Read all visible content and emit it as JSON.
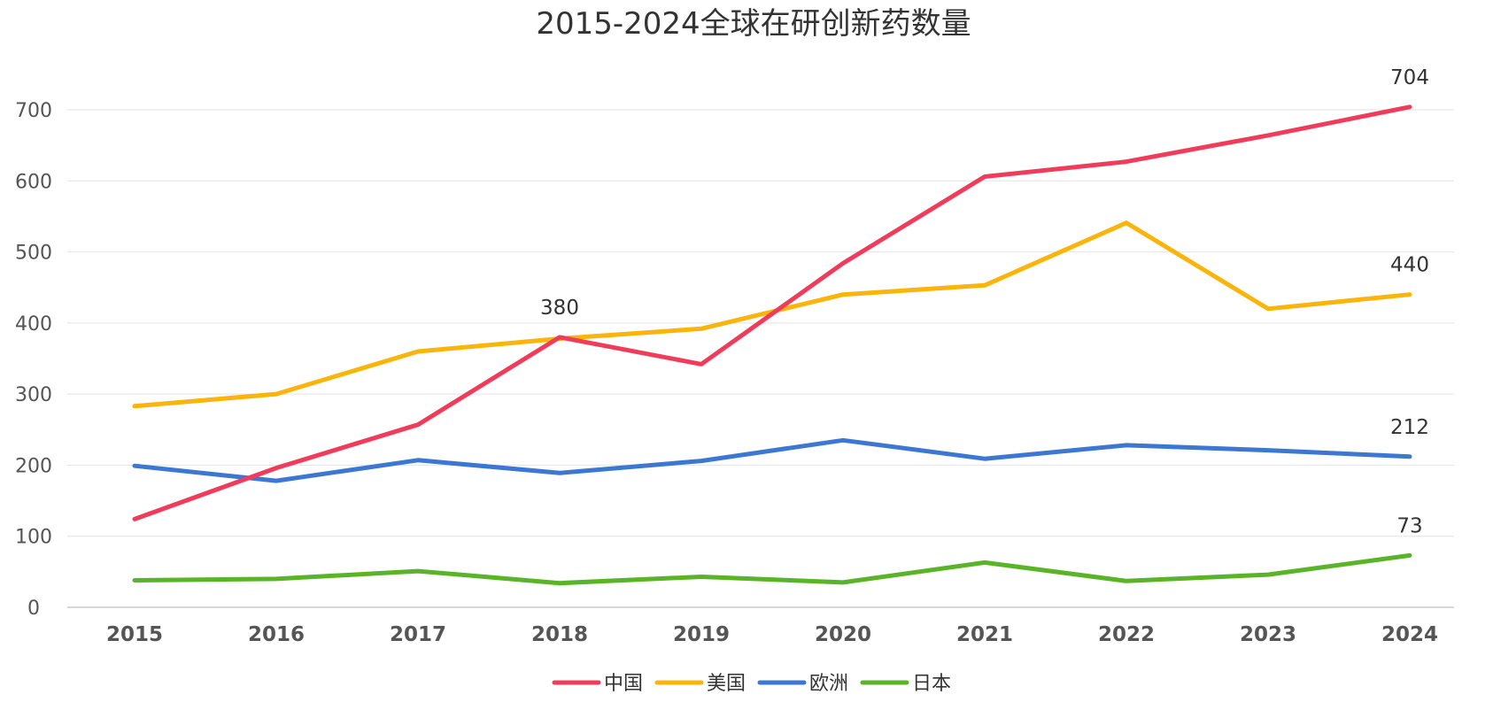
{
  "chart_data": {
    "type": "line",
    "title": "2015-2024全球在研创新药数量",
    "xlabel": "",
    "ylabel": "",
    "categories": [
      "2015",
      "2016",
      "2017",
      "2018",
      "2019",
      "2020",
      "2021",
      "2022",
      "2023",
      "2024"
    ],
    "ylim": [
      0,
      700
    ],
    "yticks": [
      0,
      100,
      200,
      300,
      400,
      500,
      600,
      700
    ],
    "grid": true,
    "legend_position": "bottom",
    "series": [
      {
        "name": "中国",
        "color": "#f03c5a",
        "values": [
          124,
          196,
          257,
          380,
          342,
          484,
          606,
          627,
          664,
          704
        ]
      },
      {
        "name": "美国",
        "color": "#fab40a",
        "values": [
          283,
          300,
          360,
          378,
          392,
          440,
          453,
          541,
          420,
          440
        ]
      },
      {
        "name": "欧洲",
        "color": "#3c78d2",
        "values": [
          199,
          178,
          207,
          189,
          206,
          235,
          209,
          228,
          221,
          212
        ]
      },
      {
        "name": "日本",
        "color": "#5ab428",
        "values": [
          38,
          40,
          51,
          34,
          43,
          35,
          63,
          37,
          46,
          73
        ]
      }
    ],
    "data_labels": [
      {
        "series": "中国",
        "category": "2018",
        "text": "380"
      },
      {
        "series": "中国",
        "category": "2024",
        "text": "704"
      },
      {
        "series": "美国",
        "category": "2024",
        "text": "440"
      },
      {
        "series": "欧洲",
        "category": "2024",
        "text": "212"
      },
      {
        "series": "日本",
        "category": "2024",
        "text": "73"
      }
    ]
  }
}
